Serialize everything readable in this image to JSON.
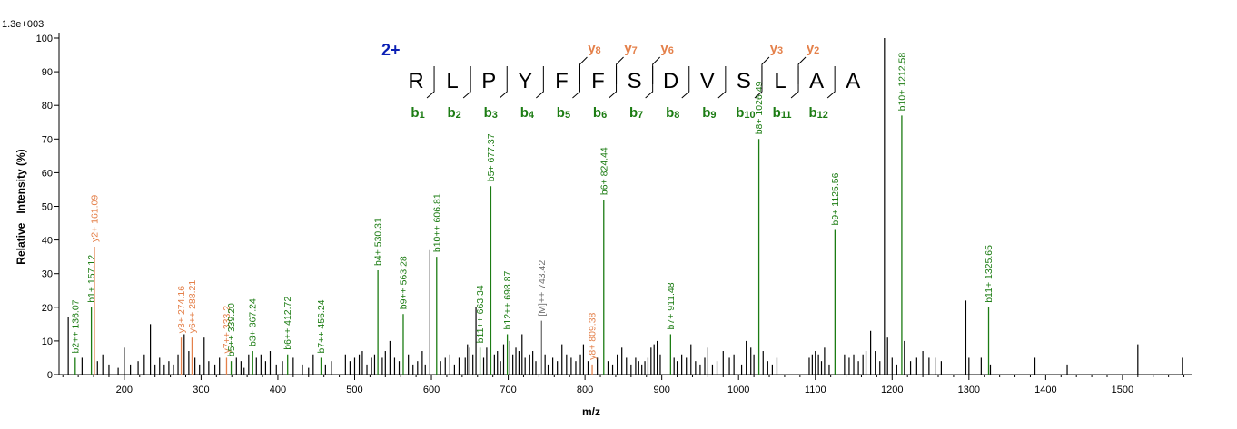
{
  "chart_data": {
    "type": "spectrum",
    "scale_label": "1.3e+003",
    "xlabel": "m/z",
    "ylabel": "Relative   Intensity (%)",
    "xlim": [
      115,
      1590
    ],
    "ylim": [
      0,
      100
    ],
    "x_ticks": [
      200,
      300,
      400,
      500,
      600,
      700,
      800,
      900,
      1000,
      1100,
      1200,
      1300,
      1400,
      1500
    ],
    "y_ticks": [
      0,
      10,
      20,
      30,
      40,
      50,
      60,
      70,
      80,
      90,
      100
    ],
    "colors": {
      "b": "#1c7c13",
      "y": "#e4804a",
      "other": "#707070",
      "unannotated": "#000000",
      "charge": "#0b1fb4"
    },
    "sequence": {
      "charge_label": "2+",
      "residues": [
        "R",
        "L",
        "P",
        "Y",
        "F",
        "F",
        "S",
        "D",
        "V",
        "S",
        "L",
        "A",
        "A"
      ],
      "b_ions": [
        {
          "after": 1,
          "label": "b",
          "num": "1"
        },
        {
          "after": 2,
          "label": "b",
          "num": "2"
        },
        {
          "after": 3,
          "label": "b",
          "num": "3"
        },
        {
          "after": 4,
          "label": "b",
          "num": "4"
        },
        {
          "after": 5,
          "label": "b",
          "num": "5"
        },
        {
          "after": 6,
          "label": "b",
          "num": "6"
        },
        {
          "after": 7,
          "label": "b",
          "num": "7"
        },
        {
          "after": 8,
          "label": "b",
          "num": "8"
        },
        {
          "after": 9,
          "label": "b",
          "num": "9"
        },
        {
          "after": 10,
          "label": "b",
          "num": "10"
        },
        {
          "after": 11,
          "label": "b",
          "num": "11"
        },
        {
          "after": 12,
          "label": "b",
          "num": "12"
        }
      ],
      "y_ions": [
        {
          "after": 5,
          "label": "y",
          "num": "8"
        },
        {
          "after": 6,
          "label": "y",
          "num": "7"
        },
        {
          "after": 7,
          "label": "y",
          "num": "6"
        },
        {
          "after": 10,
          "label": "y",
          "num": "3"
        },
        {
          "after": 11,
          "label": "y",
          "num": "2"
        }
      ]
    },
    "annotated_peaks": [
      {
        "mz": 136.07,
        "intensity": 5,
        "ion": "b",
        "label": "b2++ 136.07"
      },
      {
        "mz": 157.12,
        "intensity": 20,
        "ion": "b",
        "label": "b1+ 157.12"
      },
      {
        "mz": 161.09,
        "intensity": 38,
        "ion": "y",
        "label": "y2+ 161.09"
      },
      {
        "mz": 274.16,
        "intensity": 11,
        "ion": "y",
        "label": "y3+ 274.16"
      },
      {
        "mz": 288.21,
        "intensity": 11,
        "ion": "y",
        "label": "y6++ 288.21"
      },
      {
        "mz": 333.2,
        "intensity": 5,
        "ion": "y",
        "label": "y7++ 333.2"
      },
      {
        "mz": 339.2,
        "intensity": 4,
        "ion": "b",
        "label": "b5++ 339.20"
      },
      {
        "mz": 367.24,
        "intensity": 7,
        "ion": "b",
        "label": "b3+ 367.24"
      },
      {
        "mz": 412.72,
        "intensity": 6,
        "ion": "b",
        "label": "b6++ 412.72"
      },
      {
        "mz": 456.24,
        "intensity": 5,
        "ion": "b",
        "label": "b7++ 456.24"
      },
      {
        "mz": 530.31,
        "intensity": 31,
        "ion": "b",
        "label": "b4+ 530.31"
      },
      {
        "mz": 563.28,
        "intensity": 18,
        "ion": "b",
        "label": "b9++ 563.28"
      },
      {
        "mz": 606.81,
        "intensity": 35,
        "ion": "b",
        "label": "b10++ 606.81"
      },
      {
        "mz": 663.34,
        "intensity": 8,
        "ion": "b",
        "label": "b11++ 663.34"
      },
      {
        "mz": 677.37,
        "intensity": 56,
        "ion": "b",
        "label": "b5+ 677.37"
      },
      {
        "mz": 698.87,
        "intensity": 12,
        "ion": "b",
        "label": "b12++ 698.87"
      },
      {
        "mz": 743.42,
        "intensity": 16,
        "ion": "other",
        "label": "[M]++ 743.42"
      },
      {
        "mz": 809.38,
        "intensity": 3,
        "ion": "y",
        "label": "y8+ 809.38"
      },
      {
        "mz": 824.44,
        "intensity": 52,
        "ion": "b",
        "label": "b6+ 824.44"
      },
      {
        "mz": 911.48,
        "intensity": 12,
        "ion": "b",
        "label": "b7+ 911.48"
      },
      {
        "mz": 1026.49,
        "intensity": 70,
        "ion": "b",
        "label": "b8+ 1026.49"
      },
      {
        "mz": 1125.56,
        "intensity": 43,
        "ion": "b",
        "label": "b9+ 1125.56"
      },
      {
        "mz": 1212.58,
        "intensity": 77,
        "ion": "b",
        "label": "b10+ 1212.58"
      },
      {
        "mz": 1325.65,
        "intensity": 20,
        "ion": "b",
        "label": "b11+ 1325.65"
      }
    ],
    "unannotated_peaks": [
      [
        127,
        17
      ],
      [
        145,
        5
      ],
      [
        165,
        4
      ],
      [
        172,
        6
      ],
      [
        180,
        3
      ],
      [
        192,
        2
      ],
      [
        200,
        8
      ],
      [
        208,
        3
      ],
      [
        218,
        4
      ],
      [
        226,
        6
      ],
      [
        234,
        15
      ],
      [
        240,
        3
      ],
      [
        246,
        5
      ],
      [
        252,
        3
      ],
      [
        258,
        4
      ],
      [
        264,
        3
      ],
      [
        270,
        6
      ],
      [
        278,
        12
      ],
      [
        284,
        7
      ],
      [
        292,
        5
      ],
      [
        298,
        3
      ],
      [
        304,
        11
      ],
      [
        310,
        4
      ],
      [
        318,
        3
      ],
      [
        324,
        5
      ],
      [
        346,
        5
      ],
      [
        352,
        4
      ],
      [
        356,
        2
      ],
      [
        362,
        6
      ],
      [
        372,
        5
      ],
      [
        378,
        6
      ],
      [
        384,
        4
      ],
      [
        390,
        7
      ],
      [
        398,
        3
      ],
      [
        406,
        4
      ],
      [
        420,
        5
      ],
      [
        432,
        3
      ],
      [
        440,
        2
      ],
      [
        446,
        6
      ],
      [
        462,
        3
      ],
      [
        470,
        4
      ],
      [
        488,
        6
      ],
      [
        494,
        4
      ],
      [
        500,
        5
      ],
      [
        506,
        6
      ],
      [
        510,
        7
      ],
      [
        516,
        3
      ],
      [
        522,
        5
      ],
      [
        526,
        6
      ],
      [
        536,
        5
      ],
      [
        540,
        7
      ],
      [
        546,
        10
      ],
      [
        552,
        5
      ],
      [
        558,
        4
      ],
      [
        570,
        6
      ],
      [
        576,
        3
      ],
      [
        582,
        4
      ],
      [
        588,
        7
      ],
      [
        592,
        3
      ],
      [
        598,
        37
      ],
      [
        612,
        4
      ],
      [
        618,
        5
      ],
      [
        624,
        6
      ],
      [
        630,
        3
      ],
      [
        636,
        5
      ],
      [
        644,
        5
      ],
      [
        647,
        9
      ],
      [
        650,
        8
      ],
      [
        654,
        6
      ],
      [
        658,
        20
      ],
      [
        668,
        5
      ],
      [
        672,
        8
      ],
      [
        682,
        6
      ],
      [
        686,
        7
      ],
      [
        690,
        4
      ],
      [
        694,
        9
      ],
      [
        702,
        10
      ],
      [
        706,
        6
      ],
      [
        710,
        8
      ],
      [
        714,
        7
      ],
      [
        718,
        12
      ],
      [
        722,
        5
      ],
      [
        728,
        6
      ],
      [
        732,
        7
      ],
      [
        736,
        4
      ],
      [
        748,
        6
      ],
      [
        752,
        3
      ],
      [
        758,
        5
      ],
      [
        764,
        4
      ],
      [
        770,
        9
      ],
      [
        776,
        6
      ],
      [
        782,
        5
      ],
      [
        788,
        4
      ],
      [
        794,
        6
      ],
      [
        798,
        9
      ],
      [
        804,
        4
      ],
      [
        816,
        5
      ],
      [
        830,
        4
      ],
      [
        836,
        3
      ],
      [
        842,
        6
      ],
      [
        848,
        8
      ],
      [
        854,
        5
      ],
      [
        860,
        3
      ],
      [
        866,
        5
      ],
      [
        870,
        4
      ],
      [
        874,
        3
      ],
      [
        878,
        4
      ],
      [
        882,
        5
      ],
      [
        886,
        8
      ],
      [
        890,
        9
      ],
      [
        894,
        10
      ],
      [
        898,
        6
      ],
      [
        916,
        5
      ],
      [
        920,
        4
      ],
      [
        926,
        6
      ],
      [
        932,
        5
      ],
      [
        938,
        9
      ],
      [
        944,
        4
      ],
      [
        950,
        3
      ],
      [
        956,
        5
      ],
      [
        960,
        8
      ],
      [
        966,
        3
      ],
      [
        972,
        4
      ],
      [
        980,
        7
      ],
      [
        988,
        5
      ],
      [
        994,
        6
      ],
      [
        1004,
        3
      ],
      [
        1010,
        10
      ],
      [
        1016,
        8
      ],
      [
        1020,
        6
      ],
      [
        1032,
        7
      ],
      [
        1038,
        4
      ],
      [
        1044,
        3
      ],
      [
        1050,
        5
      ],
      [
        1092,
        5
      ],
      [
        1096,
        6
      ],
      [
        1100,
        7
      ],
      [
        1104,
        6
      ],
      [
        1108,
        4
      ],
      [
        1112,
        8
      ],
      [
        1118,
        3
      ],
      [
        1138,
        6
      ],
      [
        1144,
        5
      ],
      [
        1150,
        6
      ],
      [
        1156,
        4
      ],
      [
        1162,
        6
      ],
      [
        1166,
        7
      ],
      [
        1172,
        13
      ],
      [
        1178,
        7
      ],
      [
        1184,
        4
      ],
      [
        1190,
        100
      ],
      [
        1194,
        11
      ],
      [
        1200,
        5
      ],
      [
        1206,
        3
      ],
      [
        1216,
        10
      ],
      [
        1224,
        4
      ],
      [
        1232,
        5
      ],
      [
        1240,
        7
      ],
      [
        1248,
        5
      ],
      [
        1256,
        5
      ],
      [
        1264,
        4
      ],
      [
        1296,
        22
      ],
      [
        1300,
        5
      ],
      [
        1316,
        5
      ],
      [
        1328,
        3
      ],
      [
        1386,
        5
      ],
      [
        1428,
        3
      ],
      [
        1520,
        9
      ],
      [
        1578,
        5
      ]
    ]
  }
}
